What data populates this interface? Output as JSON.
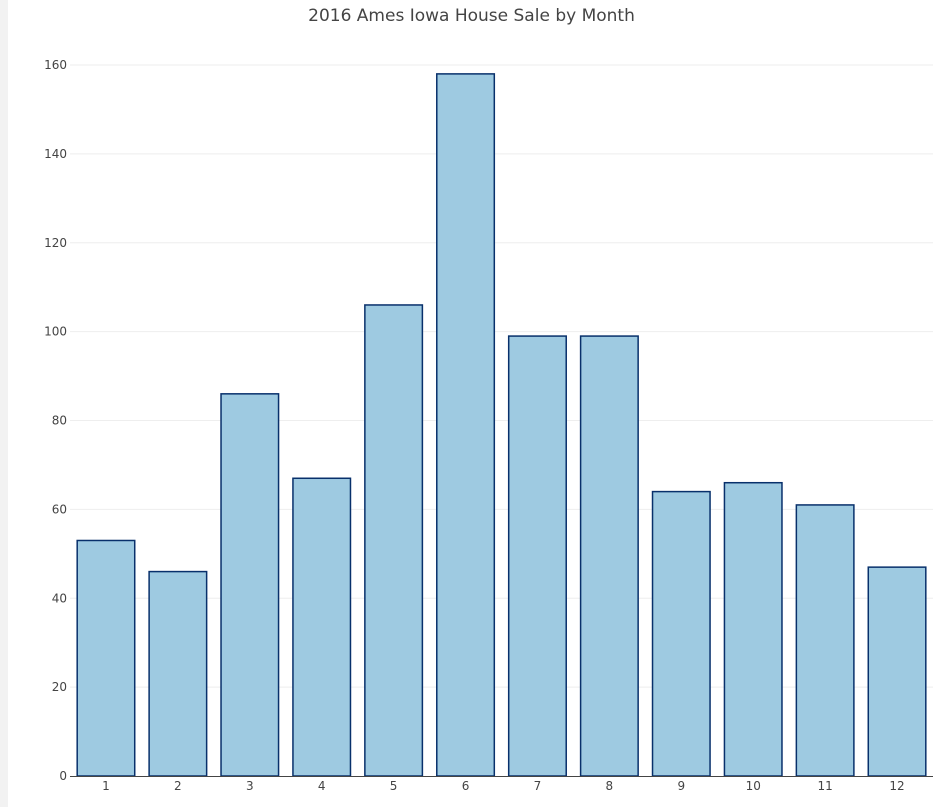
{
  "chart_data": {
    "type": "bar",
    "title": "2016 Ames Iowa House Sale by Month",
    "xlabel": "",
    "ylabel": "",
    "categories": [
      "1",
      "2",
      "3",
      "4",
      "5",
      "6",
      "7",
      "8",
      "9",
      "10",
      "11",
      "12"
    ],
    "values": [
      53,
      46,
      86,
      67,
      106,
      158,
      99,
      99,
      64,
      66,
      61,
      47
    ],
    "ylim": [
      0,
      160
    ],
    "yticks": [
      0,
      20,
      40,
      60,
      80,
      100,
      120,
      140,
      160
    ],
    "grid": true,
    "legend": "none",
    "colors": {
      "bar_fill": "#9ecae1",
      "bar_stroke": "#08306b",
      "grid": "#eeeeee",
      "axis": "#444444"
    }
  }
}
